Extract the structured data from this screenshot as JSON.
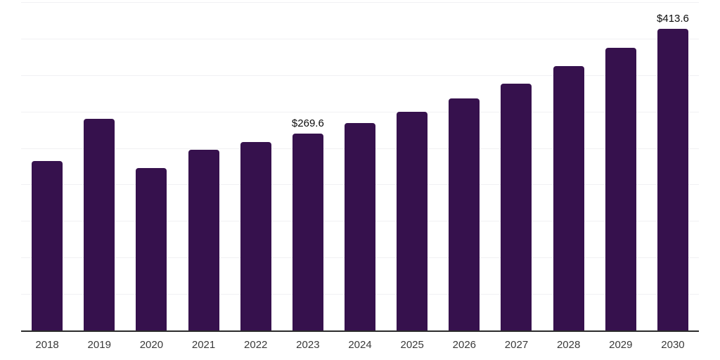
{
  "chart_data": {
    "type": "bar",
    "title": "",
    "categories": [
      "2018",
      "2019",
      "2020",
      "2021",
      "2022",
      "2023",
      "2024",
      "2025",
      "2026",
      "2027",
      "2028",
      "2029",
      "2030"
    ],
    "values": [
      232,
      290,
      223,
      248,
      258,
      269.6,
      284,
      300,
      318,
      338,
      362,
      387,
      413.6
    ],
    "value_prefix": "$",
    "data_labels": {
      "2023": "$269.6",
      "2030": "$413.6"
    },
    "xlabel": "",
    "ylabel": "",
    "ylim": [
      0,
      450
    ],
    "gridline_step": 50,
    "grid": "horizontal",
    "y_axis_labels_visible": false,
    "legend": "none",
    "bar_color": "#36114d",
    "axis_line_color": "#2b2b2b",
    "gridline_color": "#f1f1f3",
    "data_label_color": "#0c0c0c",
    "x_tick_label_color": "#3a3a3a",
    "background_color": "#ffffff"
  }
}
